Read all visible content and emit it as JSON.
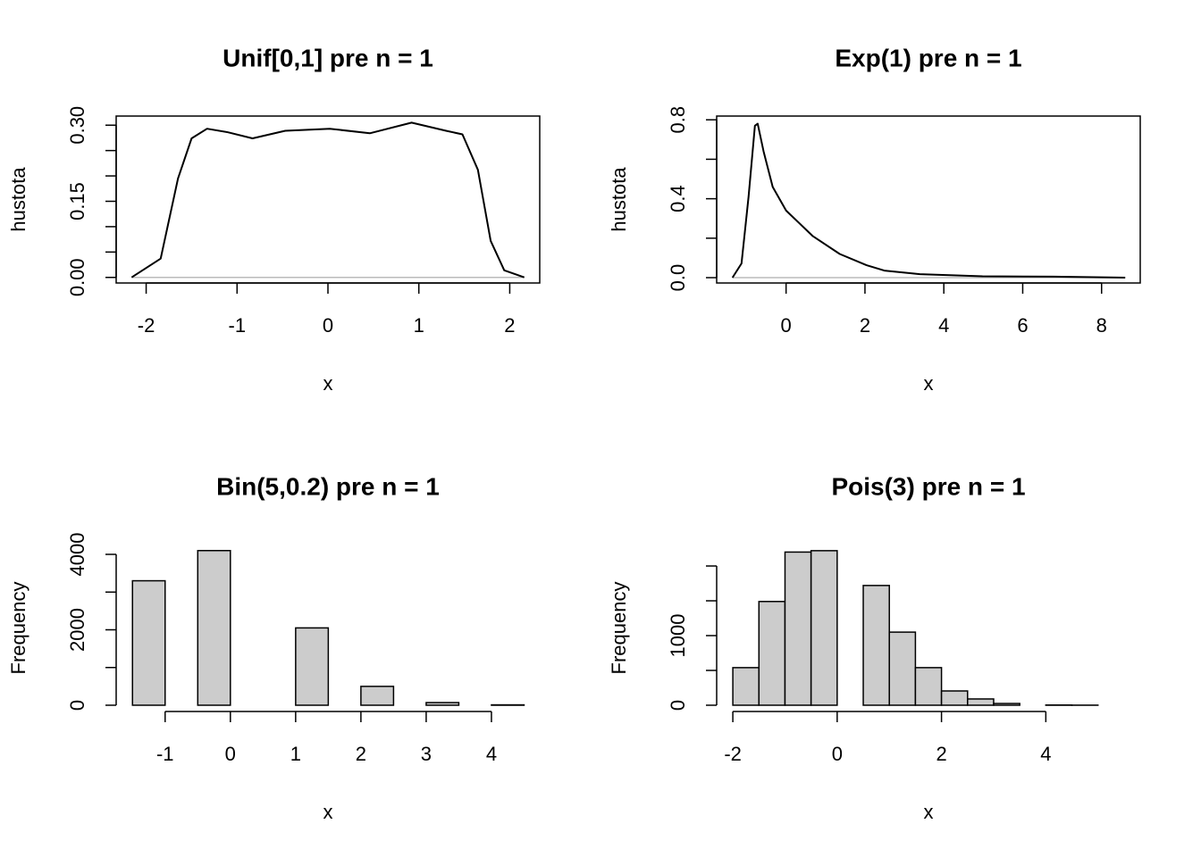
{
  "chart_data": [
    {
      "type": "line",
      "title": "Unif[0,1] pre n = 1",
      "xlabel": "x",
      "ylabel": "hustota",
      "box": true,
      "color": "#000000",
      "x": [
        -2.16,
        -1.84,
        -1.65,
        -1.5,
        -1.33,
        -1.1,
        -0.83,
        -0.47,
        0.02,
        0.46,
        0.92,
        1.3,
        1.48,
        1.65,
        1.79,
        1.94,
        2.16
      ],
      "values": [
        0,
        0.037,
        0.195,
        0.274,
        0.293,
        0.286,
        0.274,
        0.289,
        0.293,
        0.284,
        0.305,
        0.289,
        0.282,
        0.212,
        0.072,
        0.014,
        0
      ],
      "xlim": [
        -2.33,
        2.33
      ],
      "xticks": [
        -2,
        -1,
        0,
        1,
        2
      ],
      "ylim": [
        -0.011,
        0.318
      ],
      "yticks": [
        {
          "value": 0,
          "label": "0.00"
        },
        0.15,
        {
          "value": 0.3,
          "label": "0.30"
        }
      ],
      "yminor_ticks": [
        0.05,
        0.1,
        0.2,
        0.25
      ]
    },
    {
      "type": "line",
      "title": "Exp(1) pre n = 1",
      "xlabel": "x",
      "ylabel": "hustota",
      "box": true,
      "color": "#000000",
      "x": [
        -1.36,
        -1.13,
        -0.95,
        -0.79,
        -0.72,
        -0.57,
        -0.34,
        0,
        0.68,
        1.36,
        2.04,
        2.49,
        3.39,
        4.98,
        6.79,
        8.6
      ],
      "values": [
        0,
        0.072,
        0.41,
        0.77,
        0.78,
        0.64,
        0.46,
        0.34,
        0.21,
        0.12,
        0.063,
        0.036,
        0.018,
        0.007,
        0.005,
        0
      ],
      "xlim": [
        -1.76,
        8.98
      ],
      "xticks": [
        0,
        2,
        4,
        6,
        8
      ],
      "ylim": [
        -0.027,
        0.819
      ],
      "yticks": [
        {
          "value": 0,
          "label": "0.0"
        },
        0.4,
        0.8
      ],
      "yminor_ticks": [
        0.2,
        0.6
      ]
    },
    {
      "type": "histogram",
      "title": "Bin(5,0.2) pre n = 1",
      "xlabel": "x",
      "ylabel": "Frequency",
      "box": false,
      "color": "#cccccc",
      "bins": [
        -1.5,
        -1,
        -0.5,
        0,
        0.5,
        1,
        1.5,
        2,
        2.5,
        3,
        3.5,
        4,
        4.5
      ],
      "values": [
        3300,
        0,
        4100,
        0,
        0,
        2050,
        0,
        500,
        0,
        70,
        0,
        10
      ],
      "xlim": [
        -1.75,
        4.74
      ],
      "xticks": [
        -1,
        0,
        1,
        2,
        3,
        4
      ],
      "ylim": [
        -166,
        4260
      ],
      "yticks": [
        0,
        2000,
        4000
      ],
      "yminor_ticks": [
        1000,
        3000
      ]
    },
    {
      "type": "histogram",
      "title": "Pois(3) pre n = 1",
      "xlabel": "x",
      "ylabel": "Frequency",
      "box": false,
      "color": "#cccccc",
      "bins": [
        -2,
        -1.5,
        -1,
        -0.5,
        0,
        0.5,
        1,
        1.5,
        2,
        2.5,
        3,
        3.5,
        4,
        4.5,
        5,
        5.5
      ],
      "values": [
        540,
        1490,
        2200,
        2220,
        0,
        1720,
        1050,
        540,
        205,
        90,
        25,
        0,
        3,
        1,
        0
      ],
      "xlim": [
        -2.31,
        5.81
      ],
      "xticks": [
        -2,
        0,
        2,
        4
      ],
      "ylim": [
        -90,
        2308
      ],
      "yticks": [
        0,
        1000
      ],
      "yminor_ticks": [
        500,
        1500,
        2000
      ]
    }
  ]
}
